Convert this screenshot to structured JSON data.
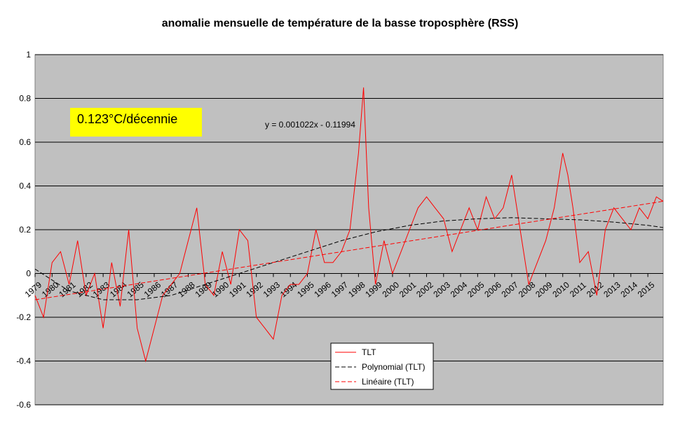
{
  "chart_data": {
    "type": "line",
    "title": "anomalie mensuelle de température de la basse troposphère (RSS)",
    "xlabel": "",
    "ylabel": "",
    "xlim": [
      1979,
      2015.9
    ],
    "ylim": [
      -0.6,
      1
    ],
    "y_ticks": [
      "1",
      "0.8",
      "0.6",
      "0.4",
      "0.2",
      "0",
      "-0.2",
      "-0.4",
      "-0.6"
    ],
    "x_tick_labels": [
      "1979",
      "1980",
      "1981",
      "1982",
      "1983",
      "1984",
      "1985",
      "1986",
      "1987",
      "1988",
      "1989",
      "1990",
      "1991",
      "1992",
      "1993",
      "1994",
      "1995",
      "1996",
      "1997",
      "1998",
      "1999",
      "2000",
      "2001",
      "2002",
      "2003",
      "2004",
      "2005",
      "2006",
      "2007",
      "2008",
      "2009",
      "2010",
      "2011",
      "2012",
      "2013",
      "2014",
      "2015"
    ],
    "grid": "horizontal",
    "plot_background": "#c0c0c0",
    "legend_position": "bottom-center",
    "series": [
      {
        "name": "TLT",
        "style": "solid",
        "color": "#ff0000",
        "x": [
          1979.0,
          1979.5,
          1980.0,
          1980.5,
          1981.0,
          1981.5,
          1982.0,
          1982.5,
          1983.0,
          1983.5,
          1984.0,
          1984.5,
          1985.0,
          1985.5,
          1986.0,
          1986.5,
          1987.0,
          1987.5,
          1988.0,
          1988.5,
          1989.0,
          1989.5,
          1990.0,
          1990.5,
          1991.0,
          1991.5,
          1992.0,
          1992.5,
          1993.0,
          1993.5,
          1994.0,
          1994.5,
          1995.0,
          1995.5,
          1996.0,
          1996.5,
          1997.0,
          1997.5,
          1998.0,
          1998.3,
          1998.6,
          1999.0,
          1999.5,
          2000.0,
          2000.5,
          2001.0,
          2001.5,
          2002.0,
          2002.5,
          2003.0,
          2003.5,
          2004.0,
          2004.5,
          2005.0,
          2005.5,
          2006.0,
          2006.5,
          2007.0,
          2007.5,
          2008.0,
          2008.5,
          2009.0,
          2009.5,
          2010.0,
          2010.3,
          2010.6,
          2011.0,
          2011.5,
          2012.0,
          2012.5,
          2013.0,
          2013.5,
          2014.0,
          2014.5,
          2015.0,
          2015.5,
          2015.9
        ],
        "y": [
          -0.1,
          -0.2,
          0.05,
          0.1,
          -0.05,
          0.15,
          -0.1,
          0.0,
          -0.25,
          0.05,
          -0.15,
          0.2,
          -0.25,
          -0.4,
          -0.25,
          -0.1,
          -0.05,
          0.0,
          0.15,
          0.3,
          -0.05,
          -0.1,
          0.1,
          -0.05,
          0.2,
          0.15,
          -0.2,
          -0.25,
          -0.3,
          -0.1,
          -0.05,
          -0.05,
          0.0,
          0.2,
          0.05,
          0.05,
          0.1,
          0.2,
          0.55,
          0.85,
          0.3,
          -0.05,
          0.15,
          0.0,
          0.1,
          0.2,
          0.3,
          0.35,
          0.3,
          0.25,
          0.1,
          0.2,
          0.3,
          0.2,
          0.35,
          0.25,
          0.3,
          0.45,
          0.2,
          -0.05,
          0.05,
          0.15,
          0.3,
          0.55,
          0.45,
          0.3,
          0.05,
          0.1,
          -0.1,
          0.2,
          0.3,
          0.25,
          0.2,
          0.3,
          0.25,
          0.35,
          0.33
        ]
      },
      {
        "name": "Polynomial (TLT)",
        "style": "dashed",
        "color": "#000000",
        "x": [
          1979.0,
          1981.0,
          1983.0,
          1985.0,
          1987.0,
          1989.0,
          1991.0,
          1993.0,
          1995.0,
          1997.0,
          1999.0,
          2001.0,
          2003.0,
          2005.0,
          2007.0,
          2009.0,
          2011.0,
          2013.0,
          2015.0,
          2015.9
        ],
        "y": [
          0.02,
          -0.08,
          -0.12,
          -0.12,
          -0.1,
          -0.05,
          0.0,
          0.05,
          0.1,
          0.15,
          0.19,
          0.22,
          0.24,
          0.25,
          0.255,
          0.25,
          0.245,
          0.235,
          0.22,
          0.21
        ]
      },
      {
        "name": "Linéaire (TLT)",
        "style": "dashed",
        "color": "#ff0000",
        "x": [
          1979.0,
          2015.9
        ],
        "y": [
          -0.12,
          0.33
        ]
      }
    ],
    "annotations": [
      {
        "text": "y = 0.001022x - 0.11994"
      },
      {
        "text": "0.123°C/décennie",
        "background": "#ffff00"
      }
    ]
  }
}
